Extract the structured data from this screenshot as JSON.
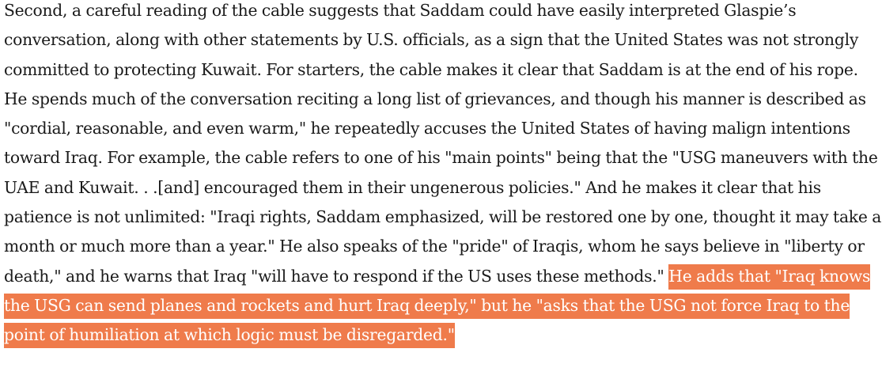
{
  "article": {
    "paragraph": {
      "text": "Second, a careful reading of the cable suggests that Saddam could have easily interpreted Glaspie’s conversation, along with other statements by U.S. officials, as a sign that the United States was not strongly committed to protecting Kuwait. For starters, the cable makes it clear that Saddam is at the end of his rope. He spends much of the conversation reciting a long list of grievances, and though his manner is described as \"cordial, reasonable, and even warm,\" he repeatedly accuses the United States of having malign intentions toward Iraq. For example, the cable refers to one of his \"main points\" being that the \"USG maneuvers with the UAE and Kuwait. . .[and] encouraged them in their ungenerous policies.\" And he makes it clear that his patience is not unlimited: \"Iraqi rights, Saddam emphasized, will be restored one by one, thought it may take a month or much more than a year.\" He also speaks of the \"pride\" of Iraqis, whom he says believe in \"liberty or death,\" and he warns that Iraq \"will have to respond if the US uses these methods.\" ",
      "highlighted_text": "He adds that \"Iraq knows the USG can send planes and rockets and hurt Iraq deeply,\" but he \"asks that the USG not force Iraq to the point of humiliation at which logic must be disregarded.\""
    },
    "highlight_color": "#ef7b4b",
    "highlight_text_color": "#ffffff",
    "text_color": "#1a1a1a"
  }
}
